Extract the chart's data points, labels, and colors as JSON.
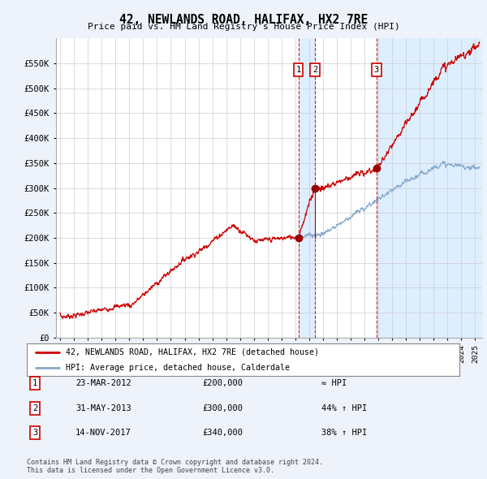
{
  "title": "42, NEWLANDS ROAD, HALIFAX, HX2 7RE",
  "subtitle": "Price paid vs. HM Land Registry's House Price Index (HPI)",
  "ylim": [
    0,
    600000
  ],
  "yticks": [
    0,
    50000,
    100000,
    150000,
    200000,
    250000,
    300000,
    350000,
    400000,
    450000,
    500000,
    550000
  ],
  "ytick_labels": [
    "£0",
    "£50K",
    "£100K",
    "£150K",
    "£200K",
    "£250K",
    "£300K",
    "£350K",
    "£400K",
    "£450K",
    "£500K",
    "£550K"
  ],
  "xlim_start": 1994.7,
  "xlim_end": 2025.5,
  "purchase_dates": [
    2012.22,
    2013.42,
    2017.87
  ],
  "purchase_prices": [
    200000,
    300000,
    340000
  ],
  "purchase_labels": [
    "1",
    "2",
    "3"
  ],
  "vline_color": "#cc0000",
  "shade_color": "#ddeeff",
  "shade_regions": [
    {
      "start": 2012.22,
      "end": 2013.42
    },
    {
      "start": 2017.87,
      "end": 2025.5
    }
  ],
  "red_line_color": "#cc0000",
  "blue_line_color": "#88aacc",
  "dot_color": "#990000",
  "bg_color": "#eef2fa",
  "plot_bg": "#ffffff",
  "grid_color": "#cccccc",
  "legend_entries": [
    {
      "label": "42, NEWLANDS ROAD, HALIFAX, HX2 7RE (detached house)",
      "color": "#cc0000"
    },
    {
      "label": "HPI: Average price, detached house, Calderdale",
      "color": "#88aacc"
    }
  ],
  "table_rows": [
    {
      "num": "1",
      "date": "23-MAR-2012",
      "price": "£200,000",
      "change": "≈ HPI"
    },
    {
      "num": "2",
      "date": "31-MAY-2013",
      "price": "£300,000",
      "change": "44% ↑ HPI"
    },
    {
      "num": "3",
      "date": "14-NOV-2017",
      "price": "£340,000",
      "change": "38% ↑ HPI"
    }
  ],
  "footnote": "Contains HM Land Registry data © Crown copyright and database right 2024.\nThis data is licensed under the Open Government Licence v3.0."
}
